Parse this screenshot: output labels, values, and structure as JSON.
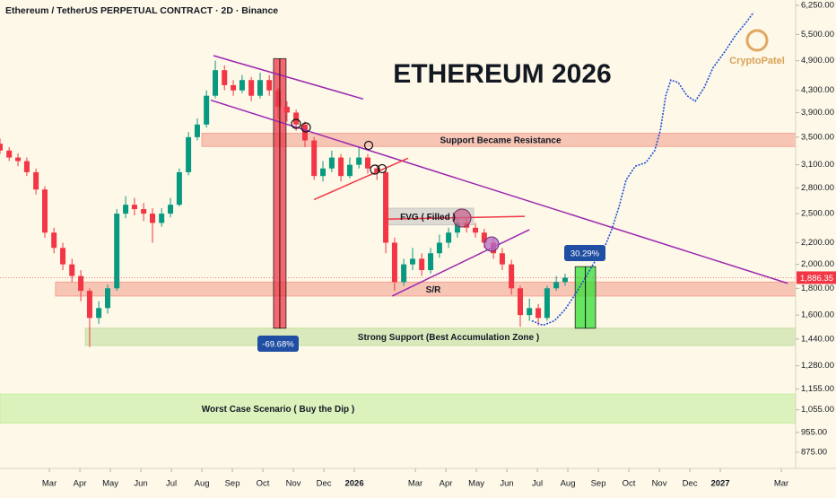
{
  "chart_data": {
    "type": "candlestick",
    "title": "ETHEREUM 2026",
    "subtitle": "Ethereum / TetherUS PERPETUAL CONTRACT · 2D · Binance",
    "watermark": "CryptoPatel",
    "log_y": true,
    "xlim": [
      0.38,
      26.47
    ],
    "ylim": [
      815,
      6400
    ],
    "xticks": [
      {
        "value": 2,
        "label": "Mar"
      },
      {
        "value": 3,
        "label": "Apr"
      },
      {
        "value": 4,
        "label": "May"
      },
      {
        "value": 5,
        "label": "Jun"
      },
      {
        "value": 6,
        "label": "Jul"
      },
      {
        "value": 7,
        "label": "Aug"
      },
      {
        "value": 8,
        "label": "Sep"
      },
      {
        "value": 9,
        "label": "Oct"
      },
      {
        "value": 10,
        "label": "Nov"
      },
      {
        "value": 11,
        "label": "Dec"
      },
      {
        "value": 12,
        "label": "2026"
      },
      {
        "value": 14,
        "label": "Mar"
      },
      {
        "value": 15,
        "label": "Apr"
      },
      {
        "value": 16,
        "label": "May"
      },
      {
        "value": 17,
        "label": "Jun"
      },
      {
        "value": 18,
        "label": "Jul"
      },
      {
        "value": 19,
        "label": "Aug"
      },
      {
        "value": 20,
        "label": "Sep"
      },
      {
        "value": 21,
        "label": "Oct"
      },
      {
        "value": 22,
        "label": "Nov"
      },
      {
        "value": 23,
        "label": "Dec"
      },
      {
        "value": 24,
        "label": "2027"
      },
      {
        "value": 26,
        "label": "Mar"
      }
    ],
    "yticks": [
      {
        "value": 6250,
        "label": "6,250.00"
      },
      {
        "value": 5500,
        "label": "5,500.00"
      },
      {
        "value": 4900,
        "label": "4,900.00"
      },
      {
        "value": 4300,
        "label": "4,300.00"
      },
      {
        "value": 3900,
        "label": "3,900.00"
      },
      {
        "value": 3500,
        "label": "3,500.00"
      },
      {
        "value": 3100,
        "label": "3,100.00"
      },
      {
        "value": 2800,
        "label": "2,800.00"
      },
      {
        "value": 2500,
        "label": "2,500.00"
      },
      {
        "value": 2200,
        "label": "2,200.00"
      },
      {
        "value": 2000,
        "label": "2,000.00"
      },
      {
        "value": 1800,
        "label": "1,800.00"
      },
      {
        "value": 1600,
        "label": "1,600.00"
      },
      {
        "value": 1440,
        "label": "1,440.00"
      },
      {
        "value": 1280,
        "label": "1,280.00"
      },
      {
        "value": 1155,
        "label": "1,155.00"
      },
      {
        "value": 1055,
        "label": "1,055.00"
      },
      {
        "value": 955,
        "label": "955.00"
      },
      {
        "value": 875,
        "label": "875.00"
      }
    ],
    "up_color": "#089981",
    "down_color": "#f23645",
    "x": [
      0.38,
      0.68,
      0.97,
      1.26,
      1.56,
      1.85,
      2.15,
      2.44,
      2.74,
      3.03,
      3.32,
      3.62,
      3.91,
      4.21,
      4.5,
      4.79,
      5.09,
      5.38,
      5.68,
      5.97,
      6.26,
      6.56,
      6.85,
      7.15,
      7.44,
      7.74,
      8.03,
      8.32,
      8.62,
      8.91,
      9.21,
      9.5,
      9.79,
      10.09,
      10.38,
      10.68,
      10.97,
      11.26,
      11.56,
      11.85,
      12.15,
      12.44,
      12.74,
      13.03,
      13.32,
      13.62,
      13.91,
      14.21,
      14.5,
      14.79,
      15.09,
      15.38,
      15.68,
      15.97,
      16.26,
      16.56,
      16.85,
      17.15,
      17.44,
      17.74,
      18.03,
      18.32,
      18.62,
      18.91
    ],
    "open": [
      3400,
      3300,
      3200,
      3150,
      3000,
      2780,
      2300,
      2150,
      2000,
      1900,
      1780,
      1580,
      1650,
      1800,
      2500,
      2600,
      2550,
      2500,
      2400,
      2500,
      2600,
      3000,
      3500,
      3700,
      4200,
      4700,
      4400,
      4300,
      4500,
      4200,
      4500,
      4300,
      4000,
      3900,
      3700,
      3450,
      2950,
      3050,
      3200,
      2950,
      3100,
      3200,
      3050,
      3000,
      2200,
      1850,
      2000,
      2050,
      1950,
      2100,
      2200,
      2300,
      2400,
      2350,
      2300,
      2200,
      2100,
      2000,
      1800,
      1600,
      1650,
      1580,
      1800,
      1850
    ],
    "high": [
      3480,
      3350,
      3260,
      3200,
      3050,
      2820,
      2350,
      2200,
      2050,
      1950,
      1800,
      1700,
      1830,
      2550,
      2700,
      2680,
      2620,
      2560,
      2560,
      2680,
      3050,
      3580,
      3800,
      4300,
      4900,
      4800,
      4500,
      4600,
      4560,
      4650,
      4600,
      4350,
      4100,
      3950,
      3750,
      3500,
      3150,
      3300,
      3250,
      3200,
      3350,
      3250,
      3100,
      3020,
      2250,
      2050,
      2150,
      2100,
      2150,
      2280,
      2350,
      2450,
      2460,
      2400,
      2340,
      2250,
      2150,
      2040,
      1820,
      1720,
      1680,
      1820,
      1900,
      1920
    ],
    "low": [
      3250,
      3150,
      3080,
      2950,
      2720,
      2250,
      2100,
      1950,
      1850,
      1700,
      1390,
      1540,
      1610,
      1780,
      2450,
      2480,
      2420,
      2200,
      2360,
      2460,
      2580,
      2960,
      3450,
      3650,
      4150,
      4300,
      4200,
      4250,
      4100,
      4150,
      4200,
      3800,
      3750,
      3600,
      3350,
      2900,
      2880,
      3000,
      2880,
      2920,
      3050,
      2980,
      2900,
      2100,
      1780,
      1820,
      1950,
      1900,
      1920,
      2060,
      2150,
      2250,
      2300,
      2250,
      2150,
      2050,
      1950,
      1750,
      1520,
      1560,
      1530,
      1560,
      1780,
      1820
    ],
    "close": [
      3300,
      3200,
      3150,
      3000,
      2780,
      2300,
      2150,
      2000,
      1900,
      1780,
      1580,
      1650,
      1800,
      2500,
      2600,
      2550,
      2500,
      2400,
      2500,
      2600,
      3000,
      3500,
      3700,
      4200,
      4700,
      4400,
      4300,
      4500,
      4200,
      4500,
      4300,
      4000,
      3900,
      3700,
      3450,
      2950,
      3050,
      3200,
      2950,
      3100,
      3200,
      3050,
      3000,
      2200,
      1850,
      2000,
      2050,
      1950,
      2100,
      2200,
      2300,
      2400,
      2350,
      2300,
      2200,
      2100,
      2000,
      1800,
      1600,
      1650,
      1580,
      1800,
      1850,
      1886.35
    ],
    "last_price": {
      "value": 1886.35,
      "label": "1,886.35"
    },
    "projection": {
      "color": "#1f4fd6",
      "x": [
        17.82,
        18.18,
        18.56,
        18.91,
        19.26,
        19.56,
        19.85,
        20.15,
        20.44,
        20.68,
        20.91,
        21.21,
        21.56,
        21.85,
        22.03,
        22.21,
        22.38,
        22.62,
        22.91,
        23.18,
        23.47,
        23.76,
        24.15,
        24.5,
        24.85,
        25.09
      ],
      "values": [
        1560,
        1530,
        1560,
        1640,
        1760,
        1880,
        2010,
        2120,
        2330,
        2580,
        2900,
        3080,
        3130,
        3300,
        3600,
        4200,
        4500,
        4450,
        4200,
        4100,
        4350,
        4750,
        5100,
        5480,
        5800,
        6060
      ]
    },
    "zones": [
      {
        "label": "Support Became Resistance",
        "x": [
          7.0,
          26.47
        ],
        "y": [
          3360,
          3560
        ],
        "color": "#f4a493"
      },
      {
        "label": "S/R",
        "x": [
          2.2,
          26.47
        ],
        "y": [
          1740,
          1850
        ],
        "color": "#f4a493"
      },
      {
        "label": "Strong Support (Best Accumulation Zone )",
        "x": [
          3.18,
          26.47
        ],
        "y": [
          1400,
          1510
        ],
        "color": "#c3dfa0"
      },
      {
        "label": "Worst Case Scenario ( Buy the Dip )",
        "x": [
          0.38,
          26.47
        ],
        "y": [
          995,
          1130
        ],
        "color": "#c4efa0"
      },
      {
        "label": "FVG ( Filled )",
        "x": [
          13.03,
          15.91
        ],
        "y": [
          2380,
          2560
        ],
        "color": "#c6c6c6"
      }
    ],
    "trendlines": [
      {
        "color": "#9c27b0",
        "x": [
          7.38,
          12.29
        ],
        "y": [
          5010,
          4140
        ]
      },
      {
        "color": "#9c27b0",
        "x": [
          7.29,
          26.21
        ],
        "y": [
          4120,
          1840
        ]
      },
      {
        "color": "#f23645",
        "x": [
          10.68,
          13.76
        ],
        "y": [
          2660,
          3190
        ]
      },
      {
        "color": "#f23645",
        "x": [
          13.03,
          17.59
        ],
        "y": [
          2440,
          2470
        ]
      },
      {
        "color": "#9c27b0",
        "x": [
          13.24,
          17.74
        ],
        "y": [
          1740,
          2330
        ]
      }
    ],
    "measures": [
      {
        "label": "-69.68%",
        "x": [
          9.35,
          9.76
        ],
        "y": [
          4945,
          1510
        ],
        "color": "#f23645"
      },
      {
        "label": "30.29%",
        "x": [
          19.24,
          19.91
        ],
        "y": [
          1510,
          1980
        ],
        "color": "#33e033"
      }
    ]
  }
}
